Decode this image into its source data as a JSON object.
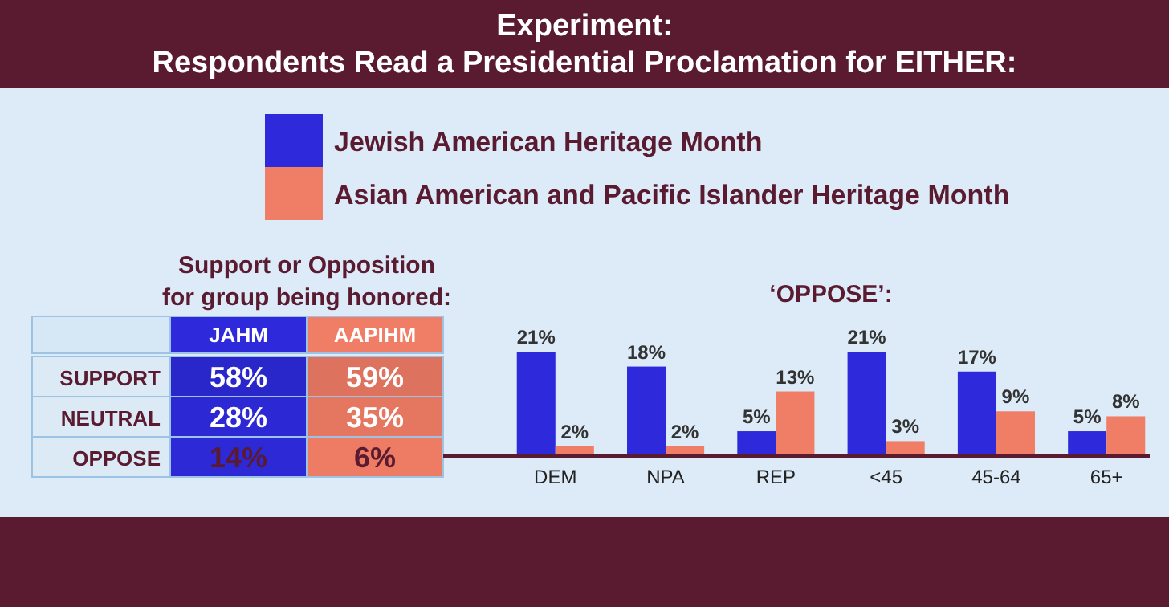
{
  "chart_data": [
    {
      "type": "other",
      "title": "Experiment:",
      "subtitle": "Respondents Read a Presidential Proclamation for EITHER:"
    },
    {
      "type": "heatmap",
      "title": "Support or Opposition\nfor group being honored:",
      "categories": [
        "JAHM",
        "AAPIHM"
      ],
      "y_categories": [
        "SUPPORT",
        "NEUTRAL",
        "OPPOSE"
      ],
      "cells": [
        [
          58,
          59
        ],
        [
          28,
          35
        ],
        [
          14,
          6
        ]
      ],
      "cell_labels": [
        [
          "58%",
          "59%"
        ],
        [
          "28%",
          "35%"
        ],
        [
          "14%",
          "6%"
        ]
      ],
      "colors": [
        "#2e2adb",
        "#f07d66"
      ]
    },
    {
      "type": "bar",
      "title": "‘OPPOSE’:",
      "categories": [
        "DEM",
        "NPA",
        "REP",
        "<45",
        "45-64",
        "65+"
      ],
      "legend": "top",
      "series": [
        {
          "name": "Jewish American Heritage Month",
          "color": "#2e2adb",
          "values": [
            21,
            18,
            5,
            21,
            17,
            5
          ],
          "value_labels": [
            "21%",
            "18%",
            "5%",
            "21%",
            "17%",
            "5%"
          ]
        },
        {
          "name": "Asian American and Pacific Islander Heritage Month",
          "color": "#f07d66",
          "values": [
            2,
            2,
            13,
            3,
            9,
            8
          ],
          "value_labels": [
            "2%",
            "2%",
            "13%",
            "3%",
            "9%",
            "8%"
          ]
        }
      ]
    }
  ]
}
